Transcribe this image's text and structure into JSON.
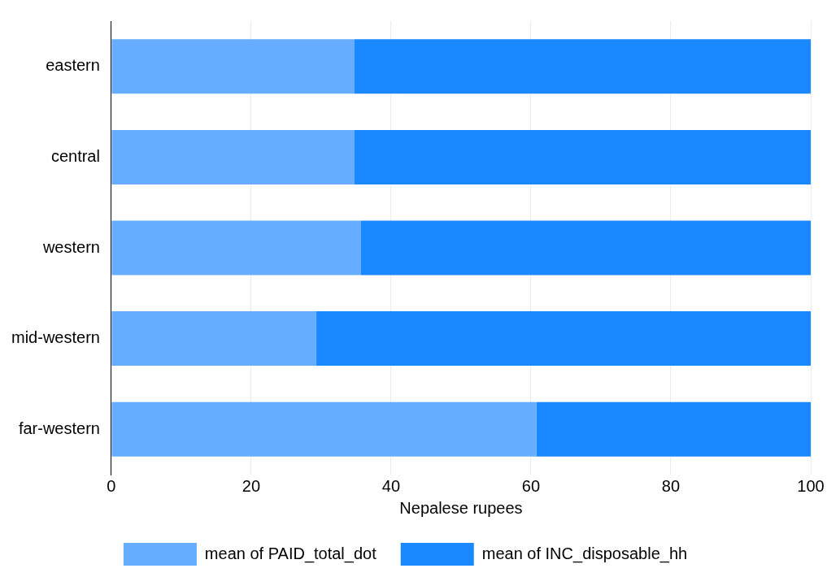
{
  "chart_data": {
    "type": "bar",
    "orientation": "horizontal",
    "stacked": true,
    "xlabel": "Nepalese rupees",
    "categories": [
      "eastern",
      "central",
      "western",
      "mid-western",
      "far-western"
    ],
    "series": [
      {
        "name": "mean of PAID_total_dot",
        "color": "#66adff",
        "values": [
          34.7,
          34.7,
          35.7,
          29.3,
          60.8
        ]
      },
      {
        "name": "mean of INC_disposable_hh",
        "color": "#1a88ff",
        "values": [
          65.3,
          65.3,
          64.3,
          70.7,
          39.2
        ]
      }
    ],
    "xlim": [
      0,
      100
    ],
    "xticks": [
      0,
      20,
      40,
      60,
      80,
      100
    ],
    "grid": "x",
    "legend": "bottom"
  }
}
